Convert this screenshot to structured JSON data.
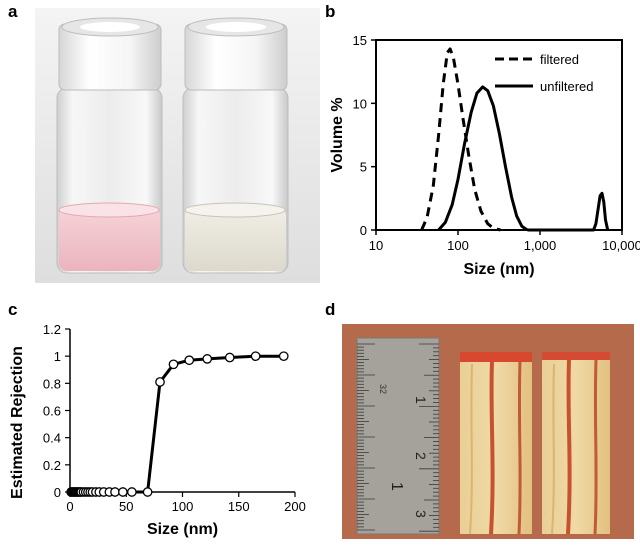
{
  "panels": {
    "a": "a",
    "b": "b",
    "c": "c",
    "d": "d"
  },
  "colors": {
    "vial_tint": "#f2c4cb",
    "wood": "#e8c98e",
    "wood_stain": "#c9462e",
    "ruler": "#a3a099"
  },
  "ruler_marks": {
    "top": "32",
    "numbers": [
      "1",
      "2",
      "3",
      "1"
    ]
  },
  "chart_data": [
    {
      "type": "line",
      "panel": "b",
      "xlabel": "Size (nm)",
      "ylabel": "Volume %",
      "xscale": "log",
      "xlim": [
        10,
        10000
      ],
      "ylim": [
        0,
        15
      ],
      "xticks": [
        10,
        100,
        1000,
        10000
      ],
      "xtick_labels": [
        "10",
        "100",
        "1,000",
        "10,000"
      ],
      "yticks": [
        0,
        5,
        10,
        15
      ],
      "ytick_labels": [
        "0",
        "5",
        "10",
        "15"
      ],
      "legend_placement": "top-right",
      "series": [
        {
          "name": "filtered",
          "style": "dashed",
          "x": [
            36,
            42,
            50,
            58,
            66,
            74,
            80,
            88,
            100,
            115,
            135,
            160,
            190,
            230,
            270,
            330
          ],
          "y": [
            0,
            1.0,
            3.5,
            7.5,
            11.5,
            14.0,
            14.3,
            13.6,
            11.5,
            8.8,
            5.9,
            3.2,
            1.5,
            0.5,
            0.15,
            0
          ]
        },
        {
          "name": "unfiltered",
          "style": "solid",
          "x": [
            58,
            70,
            85,
            100,
            120,
            145,
            170,
            200,
            230,
            270,
            320,
            380,
            450,
            520,
            600,
            680,
            720,
            4500,
            4800,
            5100,
            5400,
            5700,
            6000,
            6300,
            6700
          ],
          "y": [
            0,
            0.6,
            2.0,
            4.0,
            6.8,
            9.3,
            10.8,
            11.3,
            11.0,
            9.8,
            7.6,
            5.0,
            2.6,
            1.1,
            0.3,
            0.05,
            0,
            0,
            0.5,
            1.6,
            2.7,
            2.9,
            2.2,
            0.8,
            0
          ]
        }
      ]
    },
    {
      "type": "line",
      "panel": "c",
      "xlabel": "Size (nm)",
      "ylabel": "Estimated Rejection",
      "xlim": [
        0,
        200
      ],
      "ylim": [
        0,
        1.2
      ],
      "xticks": [
        0,
        50,
        100,
        150,
        200
      ],
      "xtick_labels": [
        "0",
        "50",
        "100",
        "150",
        "200"
      ],
      "yticks": [
        0,
        0.2,
        0.4,
        0.6,
        0.8,
        1,
        1.2
      ],
      "ytick_labels": [
        "0",
        "0.2",
        "0.4",
        "0.6",
        "0.8",
        "1",
        "1.2"
      ],
      "series": [
        {
          "style": "solid-with-open-circles",
          "x": [
            1,
            2,
            3,
            4,
            5,
            6,
            7,
            8,
            9,
            10,
            12,
            14,
            16,
            18,
            20,
            23,
            26,
            30,
            35,
            40,
            47,
            55,
            69,
            80,
            92,
            106,
            122,
            142,
            165,
            190
          ],
          "y": [
            0,
            0,
            0,
            0,
            0,
            0,
            0,
            0,
            0,
            0,
            0,
            0,
            0,
            0,
            0,
            0,
            0,
            0,
            0,
            0,
            0,
            0,
            0,
            0.81,
            0.94,
            0.97,
            0.98,
            0.99,
            1.0,
            1.0
          ]
        }
      ]
    }
  ]
}
